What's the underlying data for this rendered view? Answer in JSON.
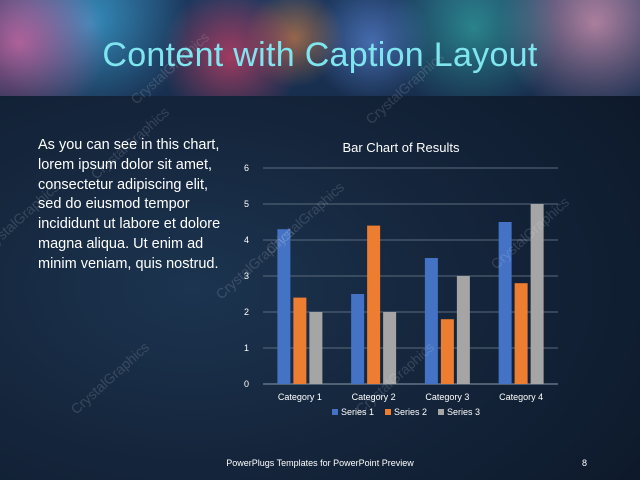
{
  "slide": {
    "title": "Content with Caption Layout",
    "body": "As you can see in this chart, lorem ipsum dolor sit amet, consectetur adipiscing elit, sed do eiusmod tempor incididunt ut labore et dolore magna aliqua. Ut enim ad minim veniam, quis nostrud.",
    "footer": "PowerPlugs Templates for PowerPoint Preview",
    "page_number": "8",
    "watermark": "CrystalGraphics"
  },
  "chart_data": {
    "type": "bar",
    "title": "Bar Chart of Results",
    "categories": [
      "Category 1",
      "Category 2",
      "Category 3",
      "Category 4"
    ],
    "series": [
      {
        "name": "Series 1",
        "values": [
          4.3,
          2.5,
          3.5,
          4.5
        ],
        "color": "#4472C4"
      },
      {
        "name": "Series 2",
        "values": [
          2.4,
          4.4,
          1.8,
          2.8
        ],
        "color": "#ED7D31"
      },
      {
        "name": "Series 3",
        "values": [
          2,
          2,
          3,
          5
        ],
        "color": "#A5A5A5"
      }
    ],
    "ylim": [
      0,
      6
    ],
    "yticks": [
      "0",
      "1",
      "2",
      "3",
      "4",
      "5",
      "6"
    ],
    "grid": true,
    "legend": "bottom"
  }
}
